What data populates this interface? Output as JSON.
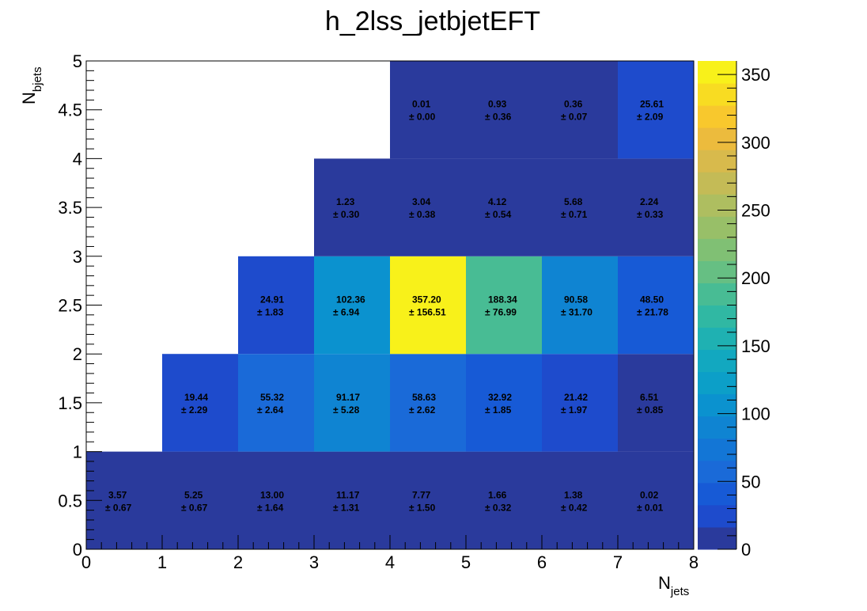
{
  "chart_data": {
    "type": "heatmap",
    "title": "h_2lss_jetbjetEFT",
    "xlabel": {
      "main": "N",
      "sub": "jets"
    },
    "ylabel": {
      "main": "N",
      "sub": "bjets"
    },
    "xlim": [
      0,
      8
    ],
    "ylim": [
      0,
      5
    ],
    "x_ticks": [
      "0",
      "1",
      "2",
      "3",
      "4",
      "5",
      "6",
      "7",
      "8"
    ],
    "y_ticks": [
      "0",
      "0.5",
      "1",
      "1.5",
      "2",
      "2.5",
      "3",
      "3.5",
      "4",
      "4.5",
      "5"
    ],
    "z_range": [
      0,
      360
    ],
    "z_ticks": [
      "0",
      "50",
      "100",
      "150",
      "200",
      "250",
      "300",
      "350"
    ],
    "palette": [
      "#2a3a9c",
      "#1e4bcc",
      "#175ad6",
      "#1a6ad8",
      "#1376d6",
      "#0f84d2",
      "#0b92cf",
      "#0c9fc8",
      "#12a8c0",
      "#1fb1b2",
      "#30b8a3",
      "#48bc94",
      "#66bf83",
      "#80c074",
      "#98bf68",
      "#aebe60",
      "#c4bb56",
      "#d8ba4c",
      "#ecbb3d",
      "#f8c82d",
      "#f8dc22",
      "#f8f11a"
    ],
    "cells": [
      {
        "x": 0.5,
        "y": 0.5,
        "value": "3.57",
        "error": "± 0.67"
      },
      {
        "x": 1.5,
        "y": 0.5,
        "value": "5.25",
        "error": "± 0.67"
      },
      {
        "x": 2.5,
        "y": 0.5,
        "value": "13.00",
        "error": "± 1.64"
      },
      {
        "x": 3.5,
        "y": 0.5,
        "value": "11.17",
        "error": "± 1.31"
      },
      {
        "x": 4.5,
        "y": 0.5,
        "value": "7.77",
        "error": "± 1.50"
      },
      {
        "x": 5.5,
        "y": 0.5,
        "value": "1.66",
        "error": "± 0.32"
      },
      {
        "x": 6.5,
        "y": 0.5,
        "value": "1.38",
        "error": "± 0.42"
      },
      {
        "x": 7.5,
        "y": 0.5,
        "value": "0.02",
        "error": "± 0.01"
      },
      {
        "x": 1.5,
        "y": 1.5,
        "value": "19.44",
        "error": "± 2.29"
      },
      {
        "x": 2.5,
        "y": 1.5,
        "value": "55.32",
        "error": "± 2.64"
      },
      {
        "x": 3.5,
        "y": 1.5,
        "value": "91.17",
        "error": "± 5.28"
      },
      {
        "x": 4.5,
        "y": 1.5,
        "value": "58.63",
        "error": "± 2.62"
      },
      {
        "x": 5.5,
        "y": 1.5,
        "value": "32.92",
        "error": "± 1.85"
      },
      {
        "x": 6.5,
        "y": 1.5,
        "value": "21.42",
        "error": "± 1.97"
      },
      {
        "x": 7.5,
        "y": 1.5,
        "value": "6.51",
        "error": "± 0.85"
      },
      {
        "x": 2.5,
        "y": 2.5,
        "value": "24.91",
        "error": "± 1.83"
      },
      {
        "x": 3.5,
        "y": 2.5,
        "value": "102.36",
        "error": "± 6.94"
      },
      {
        "x": 4.5,
        "y": 2.5,
        "value": "357.20",
        "error": "± 156.51"
      },
      {
        "x": 5.5,
        "y": 2.5,
        "value": "188.34",
        "error": "± 76.99"
      },
      {
        "x": 6.5,
        "y": 2.5,
        "value": "90.58",
        "error": "± 31.70"
      },
      {
        "x": 7.5,
        "y": 2.5,
        "value": "48.50",
        "error": "± 21.78"
      },
      {
        "x": 3.5,
        "y": 3.5,
        "value": "1.23",
        "error": "± 0.30"
      },
      {
        "x": 4.5,
        "y": 3.5,
        "value": "3.04",
        "error": "± 0.38"
      },
      {
        "x": 5.5,
        "y": 3.5,
        "value": "4.12",
        "error": "± 0.54"
      },
      {
        "x": 6.5,
        "y": 3.5,
        "value": "5.68",
        "error": "± 0.71"
      },
      {
        "x": 7.5,
        "y": 3.5,
        "value": "2.24",
        "error": "± 0.33"
      },
      {
        "x": 4.5,
        "y": 4.5,
        "value": "0.01",
        "error": "± 0.00"
      },
      {
        "x": 5.5,
        "y": 4.5,
        "value": "0.93",
        "error": "± 0.36"
      },
      {
        "x": 6.5,
        "y": 4.5,
        "value": "0.36",
        "error": "± 0.07"
      },
      {
        "x": 7.5,
        "y": 4.5,
        "value": "25.61",
        "error": "± 2.09"
      }
    ]
  }
}
